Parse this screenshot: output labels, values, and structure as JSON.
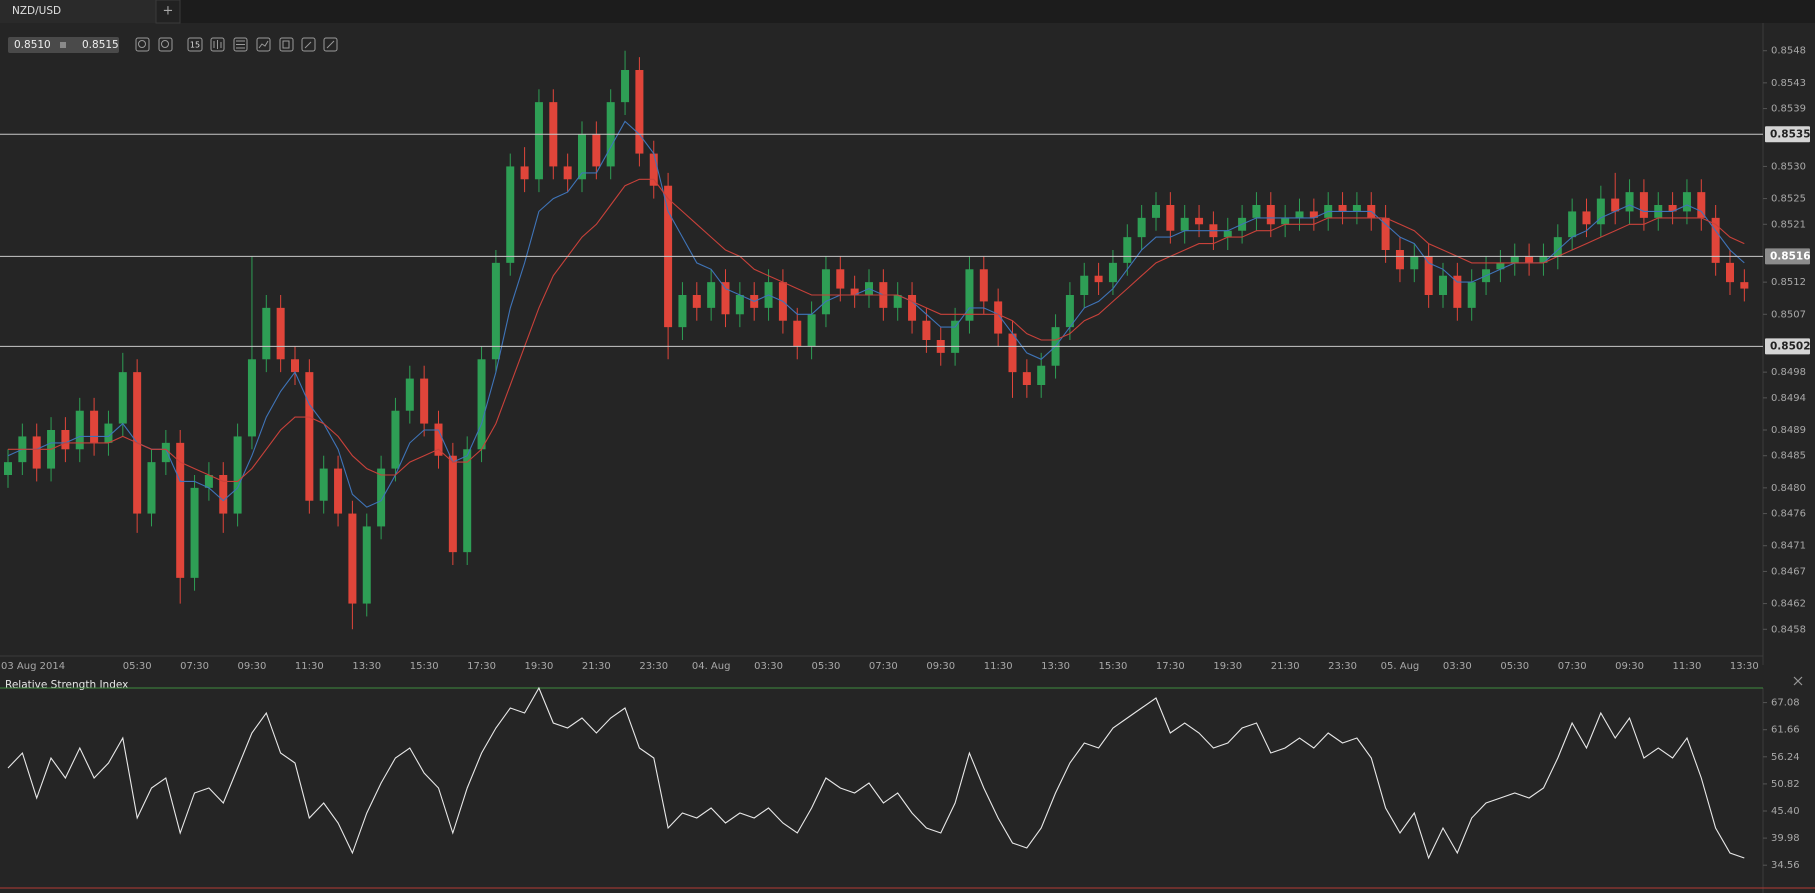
{
  "tab": {
    "title": "NZD/USD",
    "add": "+"
  },
  "quote": {
    "bid": "0.8510",
    "ask": "0.8515"
  },
  "toolbar": {
    "interval": "15"
  },
  "chart_data": [
    {
      "type": "candlestick",
      "categories": [
        "03 Aug 2014",
        null,
        null,
        null,
        null,
        null,
        null,
        null,
        null,
        "05:30",
        null,
        null,
        null,
        "07:30",
        null,
        null,
        null,
        "09:30",
        null,
        null,
        null,
        "11:30",
        null,
        null,
        null,
        "13:30",
        null,
        null,
        null,
        "15:30",
        null,
        null,
        null,
        "17:30",
        null,
        null,
        null,
        "19:30",
        null,
        null,
        null,
        "21:30",
        null,
        null,
        null,
        "23:30",
        null,
        null,
        null,
        "04. Aug",
        null,
        null,
        null,
        "03:30",
        null,
        null,
        null,
        "05:30",
        null,
        null,
        null,
        "07:30",
        null,
        null,
        null,
        "09:30",
        null,
        null,
        null,
        "11:30",
        null,
        null,
        null,
        "13:30",
        null,
        null,
        null,
        "15:30",
        null,
        null,
        null,
        "17:30",
        null,
        null,
        null,
        "19:30",
        null,
        null,
        null,
        "21:30",
        null,
        null,
        null,
        "23:30",
        null,
        null,
        null,
        "05. Aug",
        null,
        null,
        null,
        "03:30",
        null,
        null,
        null,
        "05:30",
        null,
        null,
        null,
        "07:30",
        null,
        null,
        null,
        "09:30",
        null,
        null,
        null,
        "11:30",
        null,
        null,
        null,
        "13:30"
      ],
      "open": [
        0.8482,
        0.8484,
        0.8488,
        0.8483,
        0.8489,
        0.8486,
        0.8492,
        0.8487,
        0.849,
        0.8498,
        0.8476,
        0.8484,
        0.8487,
        0.8466,
        0.848,
        0.8482,
        0.8476,
        0.8488,
        0.85,
        0.8508,
        0.85,
        0.8498,
        0.8478,
        0.8483,
        0.8476,
        0.8462,
        0.8474,
        0.8483,
        0.8492,
        0.8497,
        0.849,
        0.8485,
        0.847,
        0.8486,
        0.85,
        0.8515,
        0.853,
        0.8528,
        0.854,
        0.853,
        0.8528,
        0.8535,
        0.853,
        0.854,
        0.8545,
        0.8532,
        0.8527,
        0.8505,
        0.851,
        0.8508,
        0.8512,
        0.8507,
        0.851,
        0.8508,
        0.8512,
        0.8506,
        0.8502,
        0.8507,
        0.8514,
        0.8511,
        0.851,
        0.8512,
        0.8508,
        0.851,
        0.8506,
        0.8503,
        0.8501,
        0.8506,
        0.8514,
        0.8509,
        0.8504,
        0.8498,
        0.8496,
        0.8499,
        0.8505,
        0.851,
        0.8513,
        0.8512,
        0.8515,
        0.8519,
        0.8522,
        0.8524,
        0.852,
        0.8522,
        0.8521,
        0.8519,
        0.852,
        0.8522,
        0.8524,
        0.8521,
        0.8522,
        0.8523,
        0.8522,
        0.8524,
        0.8523,
        0.8524,
        0.8522,
        0.8517,
        0.8514,
        0.8516,
        0.851,
        0.8513,
        0.8508,
        0.8512,
        0.8514,
        0.8515,
        0.8516,
        0.8515,
        0.8516,
        0.8519,
        0.8523,
        0.8521,
        0.8525,
        0.8523,
        0.8526,
        0.8522,
        0.8524,
        0.8523,
        0.8526,
        0.8522,
        0.8515,
        0.8512
      ],
      "high": [
        0.8486,
        0.849,
        0.849,
        0.8491,
        0.8491,
        0.8494,
        0.8494,
        0.8492,
        0.8501,
        0.85,
        0.8486,
        0.8489,
        0.8489,
        0.8482,
        0.8484,
        0.8484,
        0.849,
        0.8516,
        0.851,
        0.851,
        0.8502,
        0.85,
        0.8485,
        0.8485,
        0.8478,
        0.8476,
        0.8485,
        0.8494,
        0.8499,
        0.8499,
        0.8492,
        0.8487,
        0.8488,
        0.8502,
        0.8517,
        0.8532,
        0.8533,
        0.8542,
        0.8542,
        0.8532,
        0.8537,
        0.8537,
        0.8542,
        0.8548,
        0.8547,
        0.8534,
        0.8529,
        0.8512,
        0.8512,
        0.8514,
        0.8514,
        0.8512,
        0.8512,
        0.8514,
        0.8514,
        0.8508,
        0.8509,
        0.8516,
        0.8516,
        0.8513,
        0.8514,
        0.8514,
        0.8512,
        0.8512,
        0.8508,
        0.8505,
        0.8508,
        0.8516,
        0.8516,
        0.8511,
        0.8506,
        0.85,
        0.8501,
        0.8507,
        0.8512,
        0.8515,
        0.8515,
        0.8517,
        0.8521,
        0.8524,
        0.8526,
        0.8526,
        0.8524,
        0.8524,
        0.8523,
        0.8522,
        0.8524,
        0.8526,
        0.8526,
        0.8524,
        0.8525,
        0.8525,
        0.8526,
        0.8526,
        0.8526,
        0.8526,
        0.8524,
        0.8519,
        0.8518,
        0.8518,
        0.8515,
        0.8515,
        0.8514,
        0.8516,
        0.8517,
        0.8518,
        0.8518,
        0.8518,
        0.8521,
        0.8525,
        0.8525,
        0.8527,
        0.8529,
        0.8528,
        0.8528,
        0.8526,
        0.8526,
        0.8528,
        0.8528,
        0.8524,
        0.8517,
        0.8514
      ],
      "low": [
        0.848,
        0.8482,
        0.8481,
        0.8481,
        0.8484,
        0.8484,
        0.8485,
        0.8485,
        0.8488,
        0.8473,
        0.8474,
        0.8482,
        0.8462,
        0.8464,
        0.8478,
        0.8473,
        0.8474,
        0.8486,
        0.8498,
        0.8498,
        0.8496,
        0.8476,
        0.8476,
        0.8474,
        0.8458,
        0.846,
        0.8472,
        0.8481,
        0.849,
        0.8488,
        0.8483,
        0.8468,
        0.8468,
        0.8484,
        0.8498,
        0.8513,
        0.8526,
        0.8526,
        0.8528,
        0.8526,
        0.8526,
        0.8528,
        0.8528,
        0.8538,
        0.853,
        0.8525,
        0.85,
        0.8503,
        0.8506,
        0.8506,
        0.8505,
        0.8505,
        0.8506,
        0.8506,
        0.8504,
        0.85,
        0.85,
        0.8505,
        0.8509,
        0.8508,
        0.8508,
        0.8506,
        0.8506,
        0.8504,
        0.8501,
        0.8499,
        0.8499,
        0.8504,
        0.8507,
        0.8502,
        0.8494,
        0.8494,
        0.8494,
        0.8497,
        0.8503,
        0.8508,
        0.851,
        0.851,
        0.8513,
        0.8517,
        0.852,
        0.8518,
        0.8518,
        0.8519,
        0.8517,
        0.8517,
        0.8518,
        0.852,
        0.8519,
        0.8519,
        0.852,
        0.852,
        0.852,
        0.8521,
        0.8521,
        0.852,
        0.8515,
        0.8512,
        0.8512,
        0.8508,
        0.8508,
        0.8506,
        0.8506,
        0.851,
        0.8512,
        0.8513,
        0.8513,
        0.8513,
        0.8514,
        0.8517,
        0.8519,
        0.8519,
        0.8521,
        0.8521,
        0.852,
        0.852,
        0.8521,
        0.8521,
        0.852,
        0.8513,
        0.851,
        0.8509
      ],
      "close": [
        0.8484,
        0.8488,
        0.8483,
        0.8489,
        0.8486,
        0.8492,
        0.8487,
        0.849,
        0.8498,
        0.8476,
        0.8484,
        0.8487,
        0.8466,
        0.848,
        0.8482,
        0.8476,
        0.8488,
        0.85,
        0.8508,
        0.85,
        0.8498,
        0.8478,
        0.8483,
        0.8476,
        0.8462,
        0.8474,
        0.8483,
        0.8492,
        0.8497,
        0.849,
        0.8485,
        0.847,
        0.8486,
        0.85,
        0.8515,
        0.853,
        0.8528,
        0.854,
        0.853,
        0.8528,
        0.8535,
        0.853,
        0.854,
        0.8545,
        0.8532,
        0.8527,
        0.8505,
        0.851,
        0.8508,
        0.8512,
        0.8507,
        0.851,
        0.8508,
        0.8512,
        0.8506,
        0.8502,
        0.8507,
        0.8514,
        0.8511,
        0.851,
        0.8512,
        0.8508,
        0.851,
        0.8506,
        0.8503,
        0.8501,
        0.8506,
        0.8514,
        0.8509,
        0.8504,
        0.8498,
        0.8496,
        0.8499,
        0.8505,
        0.851,
        0.8513,
        0.8512,
        0.8515,
        0.8519,
        0.8522,
        0.8524,
        0.852,
        0.8522,
        0.8521,
        0.8519,
        0.852,
        0.8522,
        0.8524,
        0.8521,
        0.8522,
        0.8523,
        0.8522,
        0.8524,
        0.8523,
        0.8524,
        0.8522,
        0.8517,
        0.8514,
        0.8516,
        0.851,
        0.8513,
        0.8508,
        0.8512,
        0.8514,
        0.8515,
        0.8516,
        0.8515,
        0.8516,
        0.8519,
        0.8523,
        0.8521,
        0.8525,
        0.8523,
        0.8526,
        0.8522,
        0.8524,
        0.8523,
        0.8526,
        0.8522,
        0.8515,
        0.8512,
        0.8511
      ],
      "up_color": "#2e9e55",
      "down_color": "#e0453a",
      "overlays": [
        {
          "color": "#3f74b8",
          "values": [
            0.8485,
            0.8486,
            0.8486,
            0.8487,
            0.8487,
            0.8488,
            0.8488,
            0.8488,
            0.849,
            0.8487,
            0.8486,
            0.8486,
            0.8481,
            0.8481,
            0.848,
            0.8478,
            0.848,
            0.8485,
            0.8491,
            0.8495,
            0.8498,
            0.8493,
            0.849,
            0.8486,
            0.8479,
            0.8477,
            0.8478,
            0.8482,
            0.8487,
            0.8489,
            0.8489,
            0.8484,
            0.8485,
            0.849,
            0.8498,
            0.8508,
            0.8515,
            0.8523,
            0.8525,
            0.8526,
            0.8529,
            0.8529,
            0.8533,
            0.8537,
            0.8535,
            0.8532,
            0.8523,
            0.8519,
            0.8515,
            0.8514,
            0.8511,
            0.851,
            0.8509,
            0.851,
            0.8509,
            0.8507,
            0.8507,
            0.8509,
            0.851,
            0.851,
            0.8511,
            0.851,
            0.851,
            0.8509,
            0.8507,
            0.8505,
            0.8505,
            0.8508,
            0.8508,
            0.8507,
            0.8504,
            0.8501,
            0.85,
            0.8502,
            0.8505,
            0.8508,
            0.8509,
            0.8511,
            0.8514,
            0.8517,
            0.8519,
            0.8519,
            0.852,
            0.852,
            0.852,
            0.852,
            0.8521,
            0.8522,
            0.8522,
            0.8522,
            0.8522,
            0.8522,
            0.8523,
            0.8523,
            0.8523,
            0.8523,
            0.8521,
            0.8519,
            0.8518,
            0.8515,
            0.8514,
            0.8512,
            0.8512,
            0.8513,
            0.8514,
            0.8515,
            0.8515,
            0.8515,
            0.8517,
            0.8519,
            0.852,
            0.8522,
            0.8523,
            0.8524,
            0.8523,
            0.8523,
            0.8523,
            0.8524,
            0.8523,
            0.852,
            0.8517,
            0.8515
          ]
        },
        {
          "color": "#c8413a",
          "values": [
            0.8486,
            0.8486,
            0.8486,
            0.8486,
            0.8487,
            0.8487,
            0.8487,
            0.8487,
            0.8488,
            0.8487,
            0.8486,
            0.8486,
            0.8484,
            0.8483,
            0.8482,
            0.8481,
            0.8481,
            0.8483,
            0.8486,
            0.8489,
            0.8491,
            0.8491,
            0.849,
            0.8488,
            0.8485,
            0.8483,
            0.8482,
            0.8482,
            0.8484,
            0.8485,
            0.8486,
            0.8484,
            0.8484,
            0.8486,
            0.849,
            0.8496,
            0.8502,
            0.8508,
            0.8513,
            0.8516,
            0.8519,
            0.8521,
            0.8524,
            0.8527,
            0.8528,
            0.8528,
            0.8525,
            0.8523,
            0.8521,
            0.8519,
            0.8517,
            0.8516,
            0.8514,
            0.8513,
            0.8512,
            0.8511,
            0.851,
            0.851,
            0.851,
            0.851,
            0.851,
            0.851,
            0.851,
            0.8509,
            0.8508,
            0.8507,
            0.8507,
            0.8507,
            0.8507,
            0.8507,
            0.8506,
            0.8504,
            0.8503,
            0.8503,
            0.8504,
            0.8506,
            0.8507,
            0.8509,
            0.8511,
            0.8513,
            0.8515,
            0.8516,
            0.8517,
            0.8518,
            0.8518,
            0.8519,
            0.8519,
            0.852,
            0.852,
            0.8521,
            0.8521,
            0.8521,
            0.8522,
            0.8522,
            0.8522,
            0.8522,
            0.8522,
            0.8521,
            0.852,
            0.8518,
            0.8517,
            0.8516,
            0.8515,
            0.8515,
            0.8515,
            0.8515,
            0.8515,
            0.8515,
            0.8516,
            0.8517,
            0.8518,
            0.8519,
            0.852,
            0.8521,
            0.8521,
            0.8522,
            0.8522,
            0.8522,
            0.8522,
            0.8521,
            0.8519,
            0.8518
          ]
        }
      ],
      "hlines": [
        0.8535,
        0.8516,
        0.8502
      ],
      "ylim": [
        0.8454,
        0.8552
      ],
      "yticks": [
        0.8548,
        0.8543,
        0.8539,
        {
          "value": 0.853,
          "label": "0.8530"
        },
        0.8525,
        0.8521,
        0.8512,
        0.8507,
        0.8498,
        0.8494,
        0.8489,
        0.8485,
        {
          "value": 0.848,
          "label": "0.8480"
        },
        0.8476,
        0.8471,
        0.8467,
        0.8462,
        0.8458
      ],
      "grid": false
    },
    {
      "type": "line",
      "title": "Relative Strength Index",
      "color": "#e8e8e8",
      "values": [
        54,
        57,
        48,
        56,
        52,
        58,
        52,
        55,
        60,
        44,
        50,
        52,
        41,
        49,
        50,
        47,
        54,
        61,
        65,
        57,
        55,
        44,
        47,
        43,
        37,
        45,
        51,
        56,
        58,
        53,
        50,
        41,
        50,
        57,
        62,
        66,
        65,
        70,
        63,
        62,
        64,
        61,
        64,
        66,
        58,
        56,
        42,
        45,
        44,
        46,
        43,
        45,
        44,
        46,
        43,
        41,
        46,
        52,
        50,
        49,
        51,
        47,
        49,
        45,
        42,
        41,
        47,
        57,
        50,
        44,
        39,
        38,
        42,
        49,
        55,
        59,
        58,
        62,
        64,
        66,
        68,
        61,
        63,
        61,
        58,
        59,
        62,
        63,
        57,
        58,
        60,
        58,
        61,
        59,
        60,
        56,
        46,
        41,
        45,
        36,
        42,
        37,
        44,
        47,
        48,
        49,
        48,
        50,
        56,
        63,
        58,
        65,
        60,
        64,
        56,
        58,
        56,
        60,
        52,
        42,
        37,
        36
      ],
      "ylim": [
        30,
        70
      ],
      "yticks": [
        67.08,
        61.66,
        56.24,
        50.82,
        {
          "value": 45.4,
          "label": "45.40"
        },
        39.98,
        34.56
      ],
      "upper_color": "#3f8a3f",
      "lower_color": "#b23a35",
      "grid": false
    }
  ]
}
